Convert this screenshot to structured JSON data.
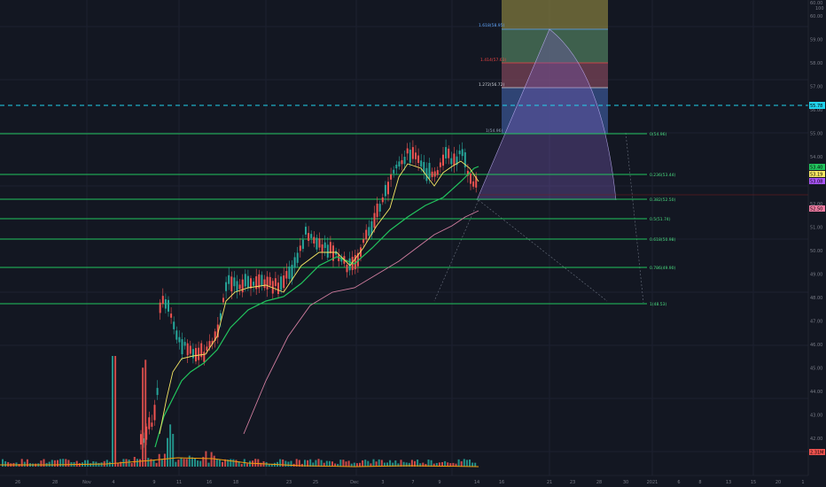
{
  "colors": {
    "background": "#131722",
    "grid": "#1e2230",
    "candle_up": "#26a69a",
    "candle_down": "#ef5350",
    "fib_line": "#22c55e",
    "fib_label": "#4ade80",
    "ma_fast": "#f5e663",
    "ma_mid": "#22c55e",
    "ma_slow": "#d27ea0",
    "dashed_cyan": "#22d3ee",
    "volume_ma": "#f59e0b"
  },
  "x_axis": {
    "ticks": [
      "26",
      "28",
      "Nov",
      "4",
      "9",
      "11",
      "16",
      "18",
      "23",
      "25",
      "Dec",
      "3",
      "7",
      "9",
      "14",
      "16",
      "21",
      "23",
      "28",
      "30",
      "2021",
      "6",
      "8",
      "13",
      "15",
      "20",
      "1"
    ]
  },
  "price_axis": {
    "ticks": [
      "60.00",
      "59.00",
      "58.00",
      "57.00",
      "56.00",
      "55.00",
      "54.00",
      "53.00",
      "52.00",
      "51.00",
      "50.00",
      "49.00",
      "48.00",
      "47.00",
      "46.00",
      "45.00",
      "44.00",
      "43.00",
      "42.00"
    ],
    "top_labels": [
      "60.00",
      "100"
    ]
  },
  "badges": {
    "dashed_level": "55.78",
    "price_1": "53.40",
    "price_2": "53.19",
    "price_3": "53.08",
    "price_4": "52.50",
    "volume": "2.31M"
  },
  "fib_retracement": [
    {
      "label": "0(54.96)"
    },
    {
      "label": "0.236(53.44)"
    },
    {
      "label": "0.382(52.50)"
    },
    {
      "label": "0.5(51.74)"
    },
    {
      "label": "0.618(50.98)"
    },
    {
      "label": "0.786(49.90)"
    },
    {
      "label": "1(48.53)"
    }
  ],
  "fib_extension": [
    {
      "label": "1.618(58.95)",
      "color": "#60a5fa"
    },
    {
      "label": "1.414(57.63)",
      "color": "#ef4444"
    },
    {
      "label": "1.272(56.72)",
      "color": "#d1d5db"
    },
    {
      "label": "1(54.96)",
      "color": "#94a3b8"
    }
  ]
}
